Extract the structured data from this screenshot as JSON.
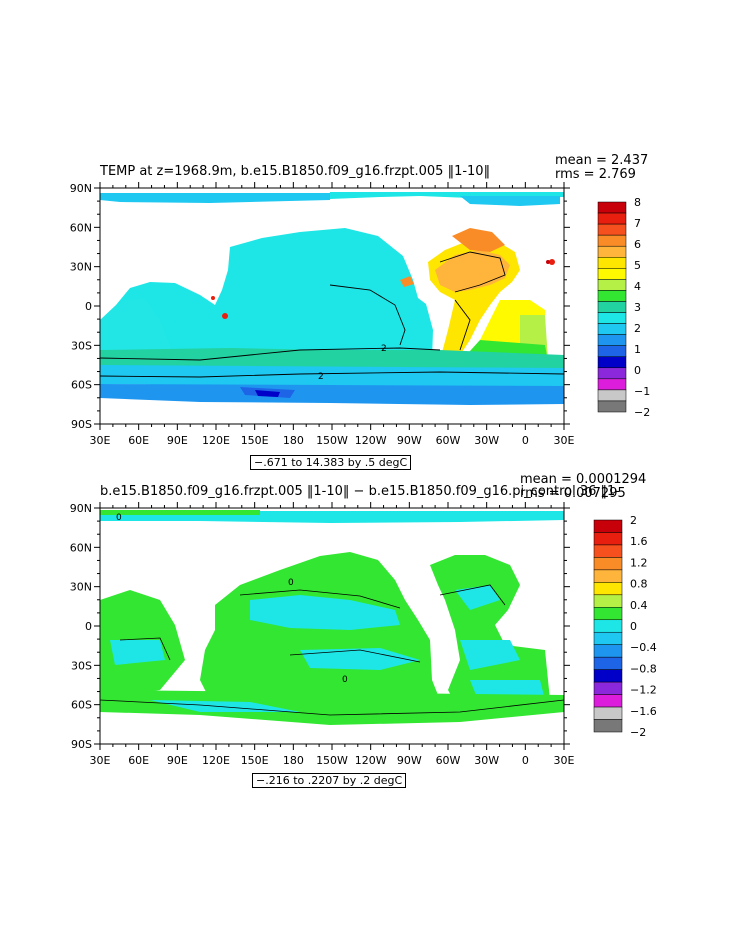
{
  "chart_data": [
    {
      "type": "heatmap",
      "title": "TEMP at z=1968.9m, b.e15.B1850.f09_g16.frzpt.005 ‖1-10‖",
      "stats": {
        "mean": "mean = 2.437",
        "rms": "rms = 2.769"
      },
      "range_label": "−.671 to 14.383 by .5 degC",
      "x_ticks": [
        "30E",
        "60E",
        "90E",
        "120E",
        "150E",
        "180",
        "150W",
        "120W",
        "90W",
        "60W",
        "30W",
        "0",
        "30E"
      ],
      "y_ticks": [
        "90N",
        "60N",
        "30N",
        "0",
        "30S",
        "60S",
        "90S"
      ],
      "colorbar": {
        "labels": [
          "8",
          "7",
          "6",
          "5",
          "4",
          "3",
          "2",
          "1",
          "0",
          "−1",
          "−2"
        ],
        "colors": [
          "#c8000a",
          "#e81e0e",
          "#f5501e",
          "#fa8c28",
          "#ffb43c",
          "#ffe600",
          "#fffa00",
          "#b4f046",
          "#32e632",
          "#22d2a0",
          "#1ee6e6",
          "#1ec8f0",
          "#1e96f0",
          "#1e64e6",
          "#0000c8",
          "#8c28dc",
          "#dc1edc",
          "#c8c8c8",
          "#787878"
        ],
        "contour_values": [
          2
        ]
      }
    },
    {
      "type": "heatmap",
      "title": "b.e15.B1850.f09_g16.frzpt.005 ‖1-10‖ − b.e15.B1850.f09_g16.pi_control.36 ‖1-",
      "stats": {
        "mean": "mean = 0.0001294",
        "rms": "rms = 0.007295"
      },
      "range_label": "−.216 to .2207 by .2 degC",
      "x_ticks": [
        "30E",
        "60E",
        "90E",
        "120E",
        "150E",
        "180",
        "150W",
        "120W",
        "90W",
        "60W",
        "30W",
        "0",
        "30E"
      ],
      "y_ticks": [
        "90N",
        "60N",
        "30N",
        "0",
        "30S",
        "60S",
        "90S"
      ],
      "colorbar": {
        "labels": [
          "2",
          "1.6",
          "1.2",
          "0.8",
          "0.4",
          "0",
          "−0.4",
          "−0.8",
          "−1.2",
          "−1.6",
          "−2"
        ],
        "colors": [
          "#c8000a",
          "#e81e0e",
          "#f5501e",
          "#fa8c28",
          "#ffb43c",
          "#ffe600",
          "#b4f046",
          "#32e632",
          "#1ee6e6",
          "#1ec8f0",
          "#1e96f0",
          "#1e64e6",
          "#0000c8",
          "#8c28dc",
          "#dc1edc",
          "#c8c8c8",
          "#787878"
        ],
        "contour_values": [
          0
        ]
      }
    }
  ]
}
